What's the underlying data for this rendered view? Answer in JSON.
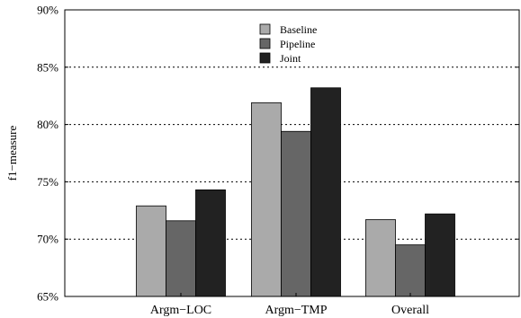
{
  "chart_data": {
    "type": "bar",
    "categories": [
      "Argm−LOC",
      "Argm−TMP",
      "Overall"
    ],
    "series": [
      {
        "name": "Baseline",
        "values": [
          72.9,
          81.9,
          71.7
        ],
        "color": "#aaaaaa"
      },
      {
        "name": "Pipeline",
        "values": [
          71.6,
          79.4,
          69.5
        ],
        "color": "#666666"
      },
      {
        "name": "Joint",
        "values": [
          74.3,
          83.2,
          72.2
        ],
        "color": "#222222"
      }
    ],
    "title": "",
    "xlabel": "",
    "ylabel": "f1−measure",
    "ylim": [
      65,
      90
    ],
    "yticks": [
      65,
      70,
      75,
      80,
      85,
      90
    ],
    "ytick_labels": [
      "65%",
      "70%",
      "75%",
      "80%",
      "85%",
      "90%"
    ],
    "grid": "horizontal dotted",
    "legend_position": "top-center"
  }
}
